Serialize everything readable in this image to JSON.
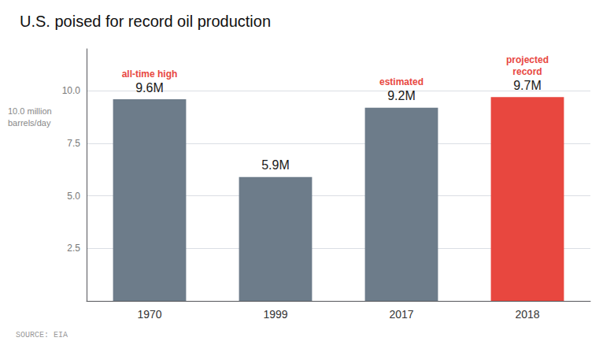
{
  "chart_data": {
    "type": "bar",
    "title": "U.S. poised for record oil production",
    "categories": [
      "1970",
      "1999",
      "2017",
      "2018"
    ],
    "values": [
      9.6,
      5.9,
      9.2,
      9.7
    ],
    "value_labels": [
      "9.6M",
      "5.9M",
      "9.2M",
      "9.7M"
    ],
    "colors": [
      "#6D7C8A",
      "#6D7C8A",
      "#6D7C8A",
      "#E8473F"
    ],
    "data_labels": true,
    "annotations": [
      {
        "text": "all-time high",
        "category": "1970",
        "color": "#E8473F"
      },
      {
        "text": "estimated",
        "category": "2017",
        "color": "#E8473F"
      },
      {
        "text": "projected\nrecord",
        "category": "2018",
        "color": "#E8473F"
      }
    ],
    "ylim": [
      0,
      12.0
    ],
    "yticks": [
      2.5,
      {
        "value": 5.0,
        "label": "5.0"
      },
      {
        "value": 7.5,
        "label": "7.5"
      },
      {
        "value": 10.0,
        "label": "10.0"
      }
    ],
    "ylabel": "10.0 million\nbarrels/day",
    "source": "SOURCE: EIA",
    "grid": true
  }
}
